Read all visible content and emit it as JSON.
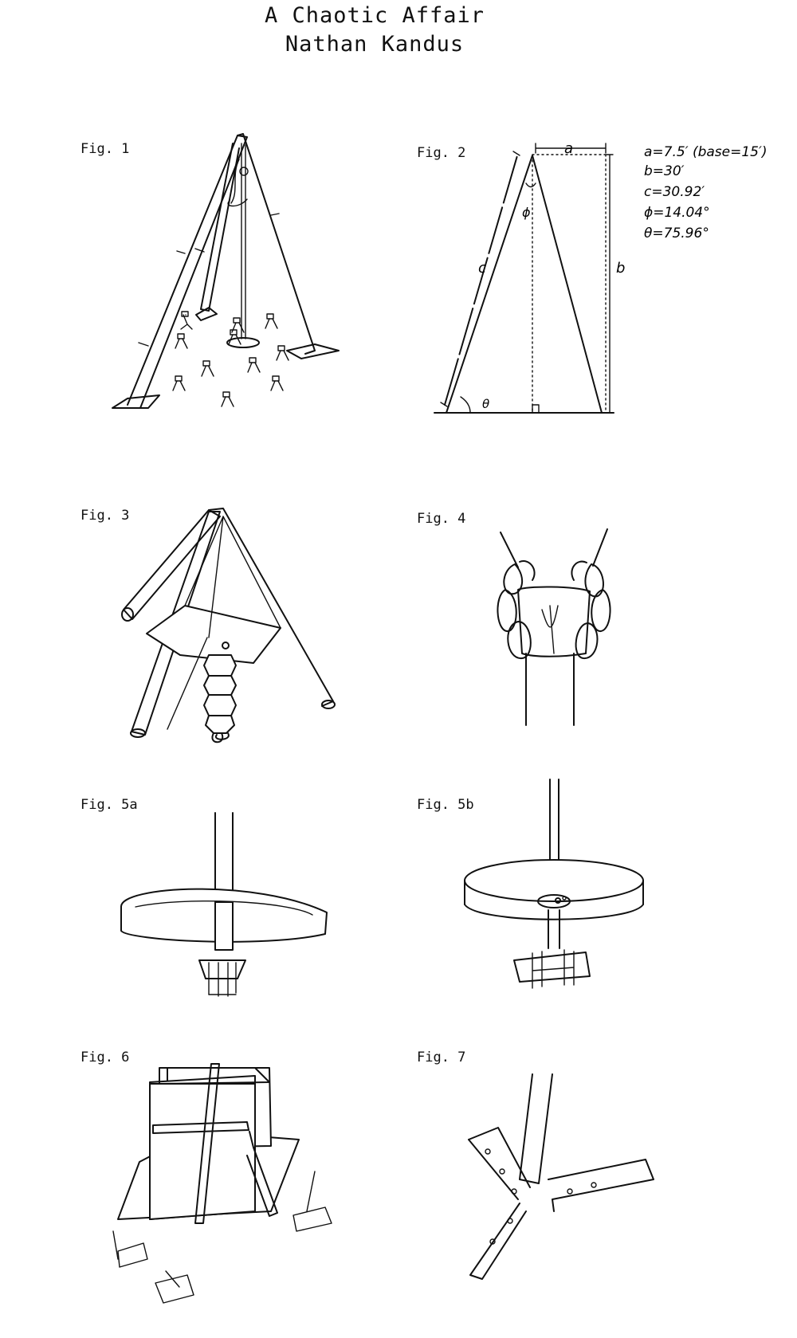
{
  "header": {
    "title": "A Chaotic Affair",
    "author": "Nathan Kandus"
  },
  "figures": [
    {
      "id": "fig1",
      "label": "Fig. 1"
    },
    {
      "id": "fig2",
      "label": "Fig. 2"
    },
    {
      "id": "fig3",
      "label": "Fig. 3"
    },
    {
      "id": "fig4",
      "label": "Fig. 4"
    },
    {
      "id": "fig5a",
      "label": "Fig. 5a"
    },
    {
      "id": "fig5b",
      "label": "Fig. 5b"
    },
    {
      "id": "fig6",
      "label": "Fig. 6"
    },
    {
      "id": "fig7",
      "label": "Fig. 7"
    }
  ],
  "fig2_diagram": {
    "side_labels": {
      "a": "a",
      "b": "b",
      "c": "c",
      "phi": "ϕ",
      "theta": "θ"
    },
    "measurements": [
      "a=7.5′ (base=15′)",
      "b=30′",
      "c=30.92′",
      "ϕ=14.04°",
      "θ=75.96°"
    ]
  }
}
